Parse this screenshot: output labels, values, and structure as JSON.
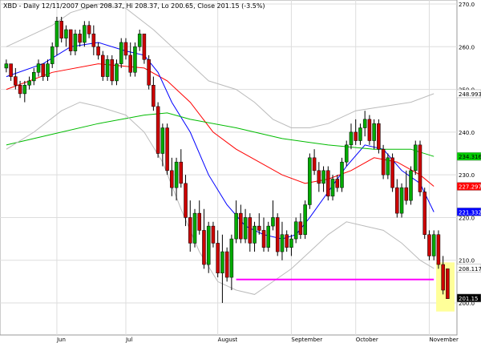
{
  "header": {
    "text": "XBD - Daily 12/11/2007 Open 208.37, Hi 208.37, Lo 200.65, Close 201.15 (-3.5%)"
  },
  "chart_data": {
    "type": "candlestick",
    "ylim": [
      194,
      270
    ],
    "y_ticks": [
      {
        "value": 270,
        "label": "270.0"
      },
      {
        "value": 260,
        "label": "260.0"
      },
      {
        "value": 250,
        "label": "250.0"
      },
      {
        "value": 240,
        "label": "240.0"
      },
      {
        "value": 230,
        "label": "230.0"
      },
      {
        "value": 220,
        "label": "220.0"
      },
      {
        "value": 210,
        "label": "210.0"
      },
      {
        "value": 200,
        "label": "200.0"
      }
    ],
    "x_months": [
      {
        "index": 11,
        "label": "Jun"
      },
      {
        "index": 26,
        "label": "Jul"
      },
      {
        "index": 46,
        "label": "August"
      },
      {
        "index": 62,
        "label": "September"
      },
      {
        "index": 76,
        "label": "October"
      },
      {
        "index": 92,
        "label": "November"
      }
    ],
    "last_values": [
      {
        "value": 248.993,
        "label": "248.993",
        "color": "#ffffff"
      },
      {
        "value": 234.316,
        "label": "234.316",
        "color": "#00cc00"
      },
      {
        "value": 227.297,
        "label": "227.297",
        "color": "#ff0000"
      },
      {
        "value": 221.332,
        "label": "221.332",
        "color": "#0000ff"
      },
      {
        "value": 208.117,
        "label": "208.117",
        "color": "#ffffff"
      },
      {
        "value": 201.15,
        "label": "201.15",
        "color": "#000000"
      }
    ],
    "support_line": {
      "value": 205.5,
      "from_index": 50,
      "to_index": 93,
      "color": "#ff00ff"
    },
    "highlight": {
      "from_index": 93.5,
      "to_index": 97.5,
      "y_low": 198,
      "y_high": 209.5,
      "color": "#ffff99"
    },
    "candles": [
      [
        255,
        257,
        254,
        256
      ],
      [
        256,
        256,
        252,
        253
      ],
      [
        253,
        255,
        250,
        251
      ],
      [
        251,
        252,
        248,
        249
      ],
      [
        249,
        252,
        247,
        251
      ],
      [
        251,
        253,
        250,
        252
      ],
      [
        252,
        255,
        251,
        254
      ],
      [
        254,
        257,
        253,
        256
      ],
      [
        256,
        256,
        252,
        253
      ],
      [
        253,
        257,
        252,
        256
      ],
      [
        256,
        261,
        255,
        260
      ],
      [
        260,
        267,
        258,
        266
      ],
      [
        266,
        267,
        261,
        262
      ],
      [
        262,
        265,
        260,
        264
      ],
      [
        264,
        264,
        258,
        259
      ],
      [
        259,
        264,
        258,
        263
      ],
      [
        263,
        264,
        260,
        261
      ],
      [
        261,
        266,
        260,
        265
      ],
      [
        265,
        266,
        262,
        263
      ],
      [
        263,
        265,
        258,
        260
      ],
      [
        260,
        261,
        257,
        258
      ],
      [
        258,
        259,
        252,
        253
      ],
      [
        253,
        258,
        252,
        257
      ],
      [
        257,
        258,
        251,
        252
      ],
      [
        252,
        257,
        251,
        256
      ],
      [
        256,
        262,
        255,
        261
      ],
      [
        261,
        262,
        257,
        258
      ],
      [
        258,
        261,
        253,
        254
      ],
      [
        254,
        261,
        253,
        260
      ],
      [
        260,
        264,
        259,
        263
      ],
      [
        263,
        263,
        256,
        257
      ],
      [
        257,
        258,
        250,
        251
      ],
      [
        251,
        253,
        245,
        246
      ],
      [
        246,
        247,
        234,
        235
      ],
      [
        235,
        242,
        232,
        241
      ],
      [
        241,
        242,
        230,
        231
      ],
      [
        231,
        234,
        225,
        227
      ],
      [
        227,
        234,
        224,
        233
      ],
      [
        233,
        236,
        227,
        228
      ],
      [
        228,
        230,
        218,
        220
      ],
      [
        220,
        224,
        212,
        214
      ],
      [
        214,
        222,
        213,
        221
      ],
      [
        221,
        224,
        216,
        217
      ],
      [
        217,
        222,
        208,
        209
      ],
      [
        209,
        219,
        207,
        218
      ],
      [
        218,
        219,
        213,
        214
      ],
      [
        214,
        217,
        206,
        207
      ],
      [
        207,
        216,
        200,
        212
      ],
      [
        212,
        213,
        205,
        206
      ],
      [
        206,
        216,
        203,
        215
      ],
      [
        215,
        224,
        214,
        221
      ],
      [
        221,
        223,
        214,
        215
      ],
      [
        215,
        222,
        214,
        220
      ],
      [
        220,
        221,
        212,
        214
      ],
      [
        214,
        219,
        212,
        218
      ],
      [
        218,
        221,
        216,
        217
      ],
      [
        217,
        220,
        212,
        213
      ],
      [
        213,
        219,
        212,
        218
      ],
      [
        218,
        224,
        217,
        220
      ],
      [
        220,
        221,
        211,
        212
      ],
      [
        212,
        219,
        210,
        216
      ],
      [
        216,
        217,
        212,
        213
      ],
      [
        213,
        216,
        211,
        215
      ],
      [
        215,
        220,
        214,
        219
      ],
      [
        219,
        221,
        215,
        216
      ],
      [
        216,
        224,
        215,
        223
      ],
      [
        223,
        235,
        222,
        234
      ],
      [
        234,
        236,
        230,
        231
      ],
      [
        231,
        233,
        226,
        228
      ],
      [
        228,
        232,
        226,
        231
      ],
      [
        231,
        232,
        224,
        225
      ],
      [
        225,
        230,
        224,
        229
      ],
      [
        229,
        230,
        226,
        227
      ],
      [
        227,
        234,
        226,
        233
      ],
      [
        233,
        238,
        232,
        237
      ],
      [
        237,
        242,
        236,
        240
      ],
      [
        240,
        243,
        237,
        238
      ],
      [
        238,
        242,
        237,
        241
      ],
      [
        241,
        245,
        239,
        243
      ],
      [
        243,
        244,
        237,
        238
      ],
      [
        238,
        243,
        236,
        242
      ],
      [
        242,
        243,
        235,
        236
      ],
      [
        236,
        237,
        229,
        230
      ],
      [
        230,
        235,
        229,
        234
      ],
      [
        234,
        235,
        226,
        227
      ],
      [
        227,
        229,
        220,
        221
      ],
      [
        221,
        228,
        220,
        227
      ],
      [
        227,
        231,
        223,
        224
      ],
      [
        224,
        232,
        223,
        231
      ],
      [
        231,
        238,
        230,
        237
      ],
      [
        237,
        238,
        225,
        226
      ],
      [
        226,
        227,
        215,
        216
      ],
      [
        216,
        217,
        210,
        211
      ],
      [
        211,
        217,
        210,
        216
      ],
      [
        216,
        217,
        208,
        209
      ],
      [
        209,
        211,
        202,
        203
      ],
      [
        208,
        208,
        201,
        201
      ]
    ],
    "series": [
      {
        "name": "",
        "color": "#ff0000",
        "points": [
          [
            0,
            250
          ],
          [
            10,
            254
          ],
          [
            20,
            256
          ],
          [
            30,
            255
          ],
          [
            35,
            252
          ],
          [
            40,
            247
          ],
          [
            45,
            240
          ],
          [
            50,
            236
          ],
          [
            55,
            233
          ],
          [
            60,
            230
          ],
          [
            65,
            228
          ],
          [
            70,
            229
          ],
          [
            75,
            231
          ],
          [
            80,
            234
          ],
          [
            85,
            233
          ],
          [
            90,
            230
          ],
          [
            93,
            227.3
          ]
        ]
      },
      {
        "name": "",
        "color": "#0000ff",
        "points": [
          [
            0,
            253
          ],
          [
            8,
            256
          ],
          [
            14,
            260
          ],
          [
            20,
            261
          ],
          [
            26,
            259
          ],
          [
            30,
            258
          ],
          [
            33,
            254
          ],
          [
            36,
            247
          ],
          [
            40,
            240
          ],
          [
            44,
            230
          ],
          [
            48,
            223
          ],
          [
            52,
            218
          ],
          [
            56,
            216
          ],
          [
            60,
            215
          ],
          [
            63,
            216
          ],
          [
            66,
            220
          ],
          [
            70,
            226
          ],
          [
            74,
            232
          ],
          [
            78,
            237
          ],
          [
            82,
            236
          ],
          [
            86,
            231
          ],
          [
            90,
            228
          ],
          [
            93,
            221.3
          ]
        ]
      },
      {
        "name": "",
        "color": "#00bb00",
        "points": [
          [
            0,
            237
          ],
          [
            10,
            239.5
          ],
          [
            20,
            242
          ],
          [
            30,
            244
          ],
          [
            35,
            244.5
          ],
          [
            40,
            243
          ],
          [
            50,
            241
          ],
          [
            60,
            238.5
          ],
          [
            70,
            237
          ],
          [
            80,
            236
          ],
          [
            88,
            236
          ],
          [
            93,
            234.3
          ]
        ]
      },
      {
        "name": "",
        "color": "#bbbbbb",
        "points": [
          [
            0,
            260
          ],
          [
            6,
            263
          ],
          [
            10,
            265
          ],
          [
            14,
            268
          ],
          [
            20,
            270
          ],
          [
            26,
            269
          ],
          [
            32,
            264
          ],
          [
            38,
            258
          ],
          [
            44,
            252
          ],
          [
            50,
            250
          ],
          [
            54,
            247
          ],
          [
            58,
            243
          ],
          [
            62,
            241
          ],
          [
            66,
            241
          ],
          [
            70,
            242
          ],
          [
            76,
            245
          ],
          [
            82,
            246
          ],
          [
            88,
            247
          ],
          [
            93,
            249
          ]
        ]
      },
      {
        "name": "",
        "color": "#bbbbbb",
        "points": [
          [
            0,
            236
          ],
          [
            6,
            240
          ],
          [
            12,
            245
          ],
          [
            16,
            247
          ],
          [
            20,
            246
          ],
          [
            26,
            244
          ],
          [
            30,
            240
          ],
          [
            34,
            233
          ],
          [
            38,
            222
          ],
          [
            42,
            212
          ],
          [
            46,
            205
          ],
          [
            50,
            203
          ],
          [
            54,
            202
          ],
          [
            58,
            205
          ],
          [
            62,
            208
          ],
          [
            66,
            212
          ],
          [
            70,
            216
          ],
          [
            74,
            219
          ],
          [
            78,
            218
          ],
          [
            82,
            217
          ],
          [
            86,
            214
          ],
          [
            90,
            210
          ],
          [
            93,
            208.1
          ]
        ]
      }
    ]
  }
}
